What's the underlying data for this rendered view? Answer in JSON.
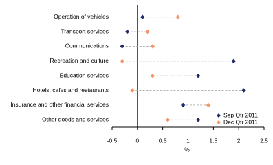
{
  "chart_data": {
    "type": "dot",
    "categories": [
      "Operation of vehicles",
      "Transport services",
      "Communications",
      "Recreation and culture",
      "Education services",
      "Hotels, cafes and restaurants",
      "Insurance and other financial services",
      "Other goods and services"
    ],
    "series": [
      {
        "name": "Sep Qtr 2011",
        "color": "#1f2a6b",
        "marker": "diamond",
        "values": [
          0.1,
          -0.2,
          -0.3,
          1.9,
          1.2,
          2.1,
          0.9,
          1.2
        ]
      },
      {
        "name": "Dec Qtr 2011",
        "color": "#f4956b",
        "marker": "diamond",
        "values": [
          0.8,
          0.2,
          0.3,
          -0.3,
          0.3,
          -0.1,
          1.4,
          0.6
        ]
      }
    ],
    "xlim": [
      -0.5,
      2.5
    ],
    "xticks": [
      -0.5,
      0,
      0.5,
      1.0,
      1.5,
      2.0,
      2.5
    ],
    "x_label": "%",
    "legend": "lower-right"
  }
}
